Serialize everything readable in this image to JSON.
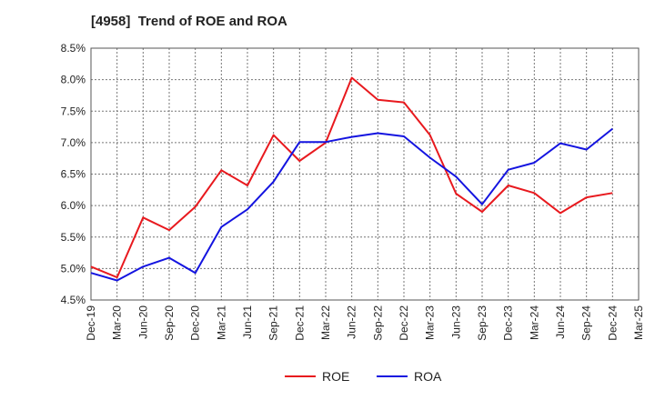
{
  "chart_data": {
    "type": "line",
    "title": "[4958]  Trend of ROE and ROA",
    "x": [
      "Dec-19",
      "Mar-20",
      "Jun-20",
      "Sep-20",
      "Dec-20",
      "Mar-21",
      "Jun-21",
      "Sep-21",
      "Dec-21",
      "Mar-22",
      "Jun-22",
      "Sep-22",
      "Dec-22",
      "Mar-23",
      "Jun-23",
      "Sep-23",
      "Dec-23",
      "Mar-24",
      "Jun-24",
      "Sep-24",
      "Dec-24",
      "Mar-25"
    ],
    "ylim": [
      4.5,
      8.5
    ],
    "yticks": [
      "4.5%",
      "5.0%",
      "5.5%",
      "6.0%",
      "6.5%",
      "7.0%",
      "7.5%",
      "8.0%",
      "8.5%"
    ],
    "grid": true,
    "legend": "bottom",
    "series": [
      {
        "name": "ROE",
        "color": "#e8191e",
        "values": [
          5.03,
          4.86,
          5.81,
          5.61,
          5.98,
          6.56,
          6.32,
          7.12,
          6.71,
          7.0,
          8.03,
          7.68,
          7.64,
          7.12,
          6.19,
          5.9,
          6.32,
          6.2,
          5.88,
          6.13,
          6.2,
          null
        ]
      },
      {
        "name": "ROA",
        "color": "#1414e0",
        "values": [
          4.93,
          4.81,
          5.03,
          5.17,
          4.93,
          5.66,
          5.94,
          6.38,
          7.01,
          7.01,
          7.09,
          7.15,
          7.1,
          6.76,
          6.46,
          6.02,
          6.57,
          6.68,
          6.99,
          6.89,
          7.22,
          null
        ]
      }
    ]
  }
}
